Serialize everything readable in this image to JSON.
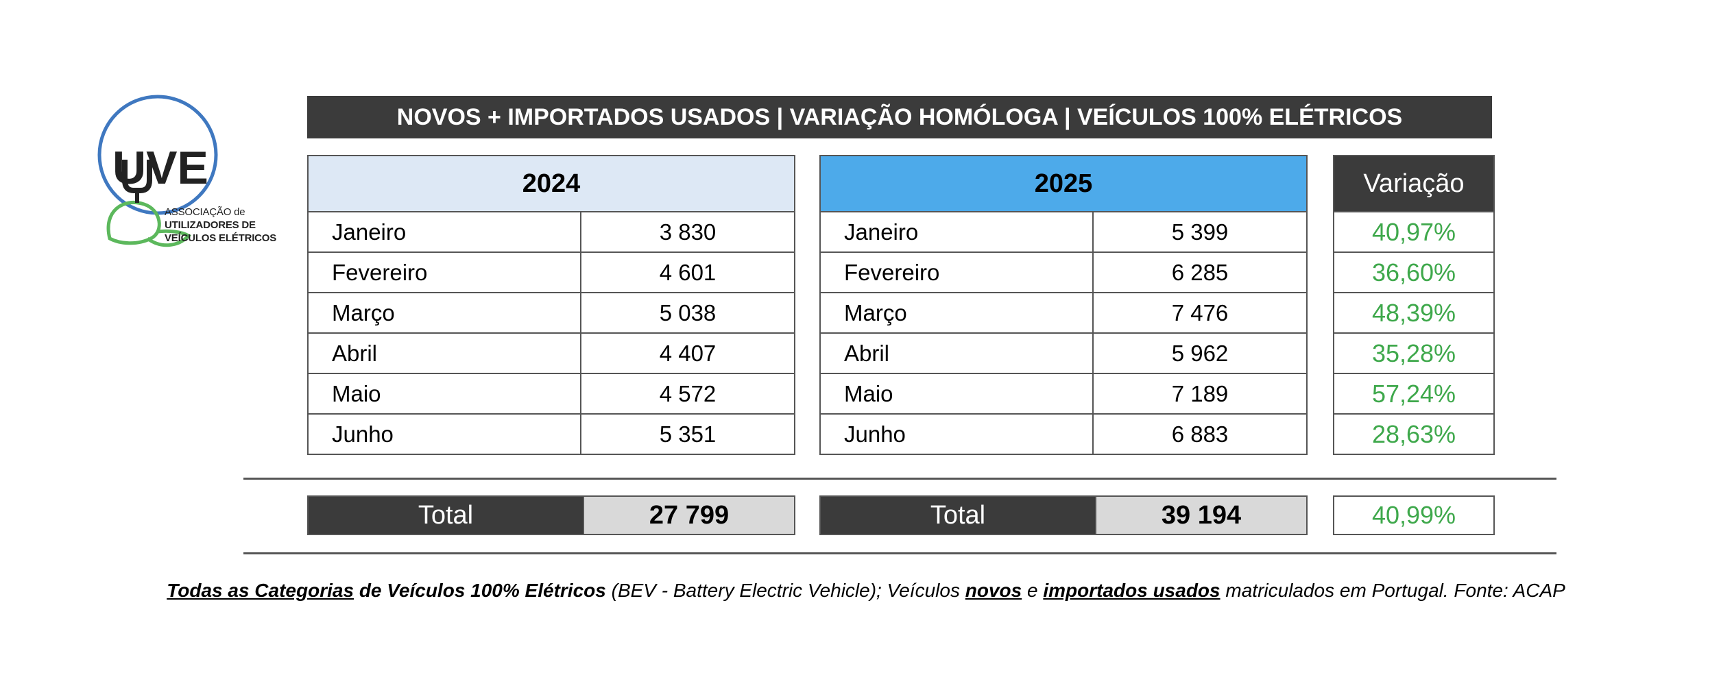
{
  "logo": {
    "mark": "UVE",
    "line1": "ASSOCIAÇÃO de",
    "line2": "UTILIZADORES DE",
    "line3": "VEÍCULOS ELÉTRICOS",
    "colors": {
      "ring": "#3f78c0",
      "leaf": "#5cb85c",
      "text": "#222222"
    }
  },
  "banner": {
    "title": "NOVOS + IMPORTADOS USADOS | VARIAÇÃO HOMÓLOGA | VEÍCULOS 100% ELÉTRICOS"
  },
  "chart_data": {
    "type": "table",
    "title": "NOVOS + IMPORTADOS USADOS | VARIAÇÃO HOMÓLOGA | VEÍCULOS 100% ELÉTRICOS",
    "categories": [
      "Janeiro",
      "Fevereiro",
      "Março",
      "Abril",
      "Maio",
      "Junho"
    ],
    "series": [
      {
        "name": "2024",
        "values": [
          "3 830",
          "4 601",
          "5 038",
          "4 407",
          "4 572",
          "5 351"
        ],
        "total": "27 799",
        "header_color": "#dde8f5"
      },
      {
        "name": "2025",
        "values": [
          "5 399",
          "6 285",
          "7 476",
          "5 962",
          "7 189",
          "6 883"
        ],
        "total": "39 194",
        "header_color": "#4daaea"
      },
      {
        "name": "Variação",
        "values": [
          "40,97%",
          "36,60%",
          "48,39%",
          "35,28%",
          "57,24%",
          "28,63%"
        ],
        "total": "40,99%",
        "value_color": "#3ea84b"
      }
    ],
    "total_label": "Total"
  },
  "footnote": {
    "part1": "Todas as Categorias",
    "part2": "de Veículos 100% Elétricos",
    "part3": "(BEV - Battery Electric Vehicle); Veículos",
    "part4": "novos",
    "part5": "e",
    "part6": "importados usados",
    "part7": "matriculados em Portugal. Fonte: ACAP"
  }
}
